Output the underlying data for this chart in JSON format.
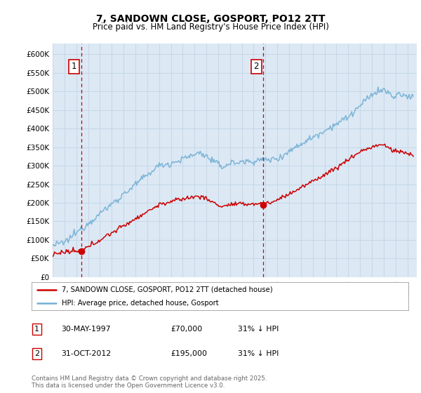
{
  "title": "7, SANDOWN CLOSE, GOSPORT, PO12 2TT",
  "subtitle": "Price paid vs. HM Land Registry's House Price Index (HPI)",
  "ylim": [
    0,
    630000
  ],
  "xlim_start": 1995.0,
  "xlim_end": 2025.8,
  "sale1_date": 1997.41,
  "sale1_price": 70000,
  "sale1_label": "1",
  "sale2_date": 2012.83,
  "sale2_price": 195000,
  "sale2_label": "2",
  "legend_line1": "7, SANDOWN CLOSE, GOSPORT, PO12 2TT (detached house)",
  "legend_line2": "HPI: Average price, detached house, Gosport",
  "table_row1": [
    "1",
    "30-MAY-1997",
    "£70,000",
    "31% ↓ HPI"
  ],
  "table_row2": [
    "2",
    "31-OCT-2012",
    "£195,000",
    "31% ↓ HPI"
  ],
  "footnote": "Contains HM Land Registry data © Crown copyright and database right 2025.\nThis data is licensed under the Open Government Licence v3.0.",
  "sale_color": "#cc0000",
  "hpi_color": "#74afd3",
  "bg_color": "#dce9f5",
  "grid_color": "#c8d8e8",
  "vline_color": "#cc0000",
  "box_color": "#cc0000",
  "title_fontsize": 10,
  "subtitle_fontsize": 8.5
}
